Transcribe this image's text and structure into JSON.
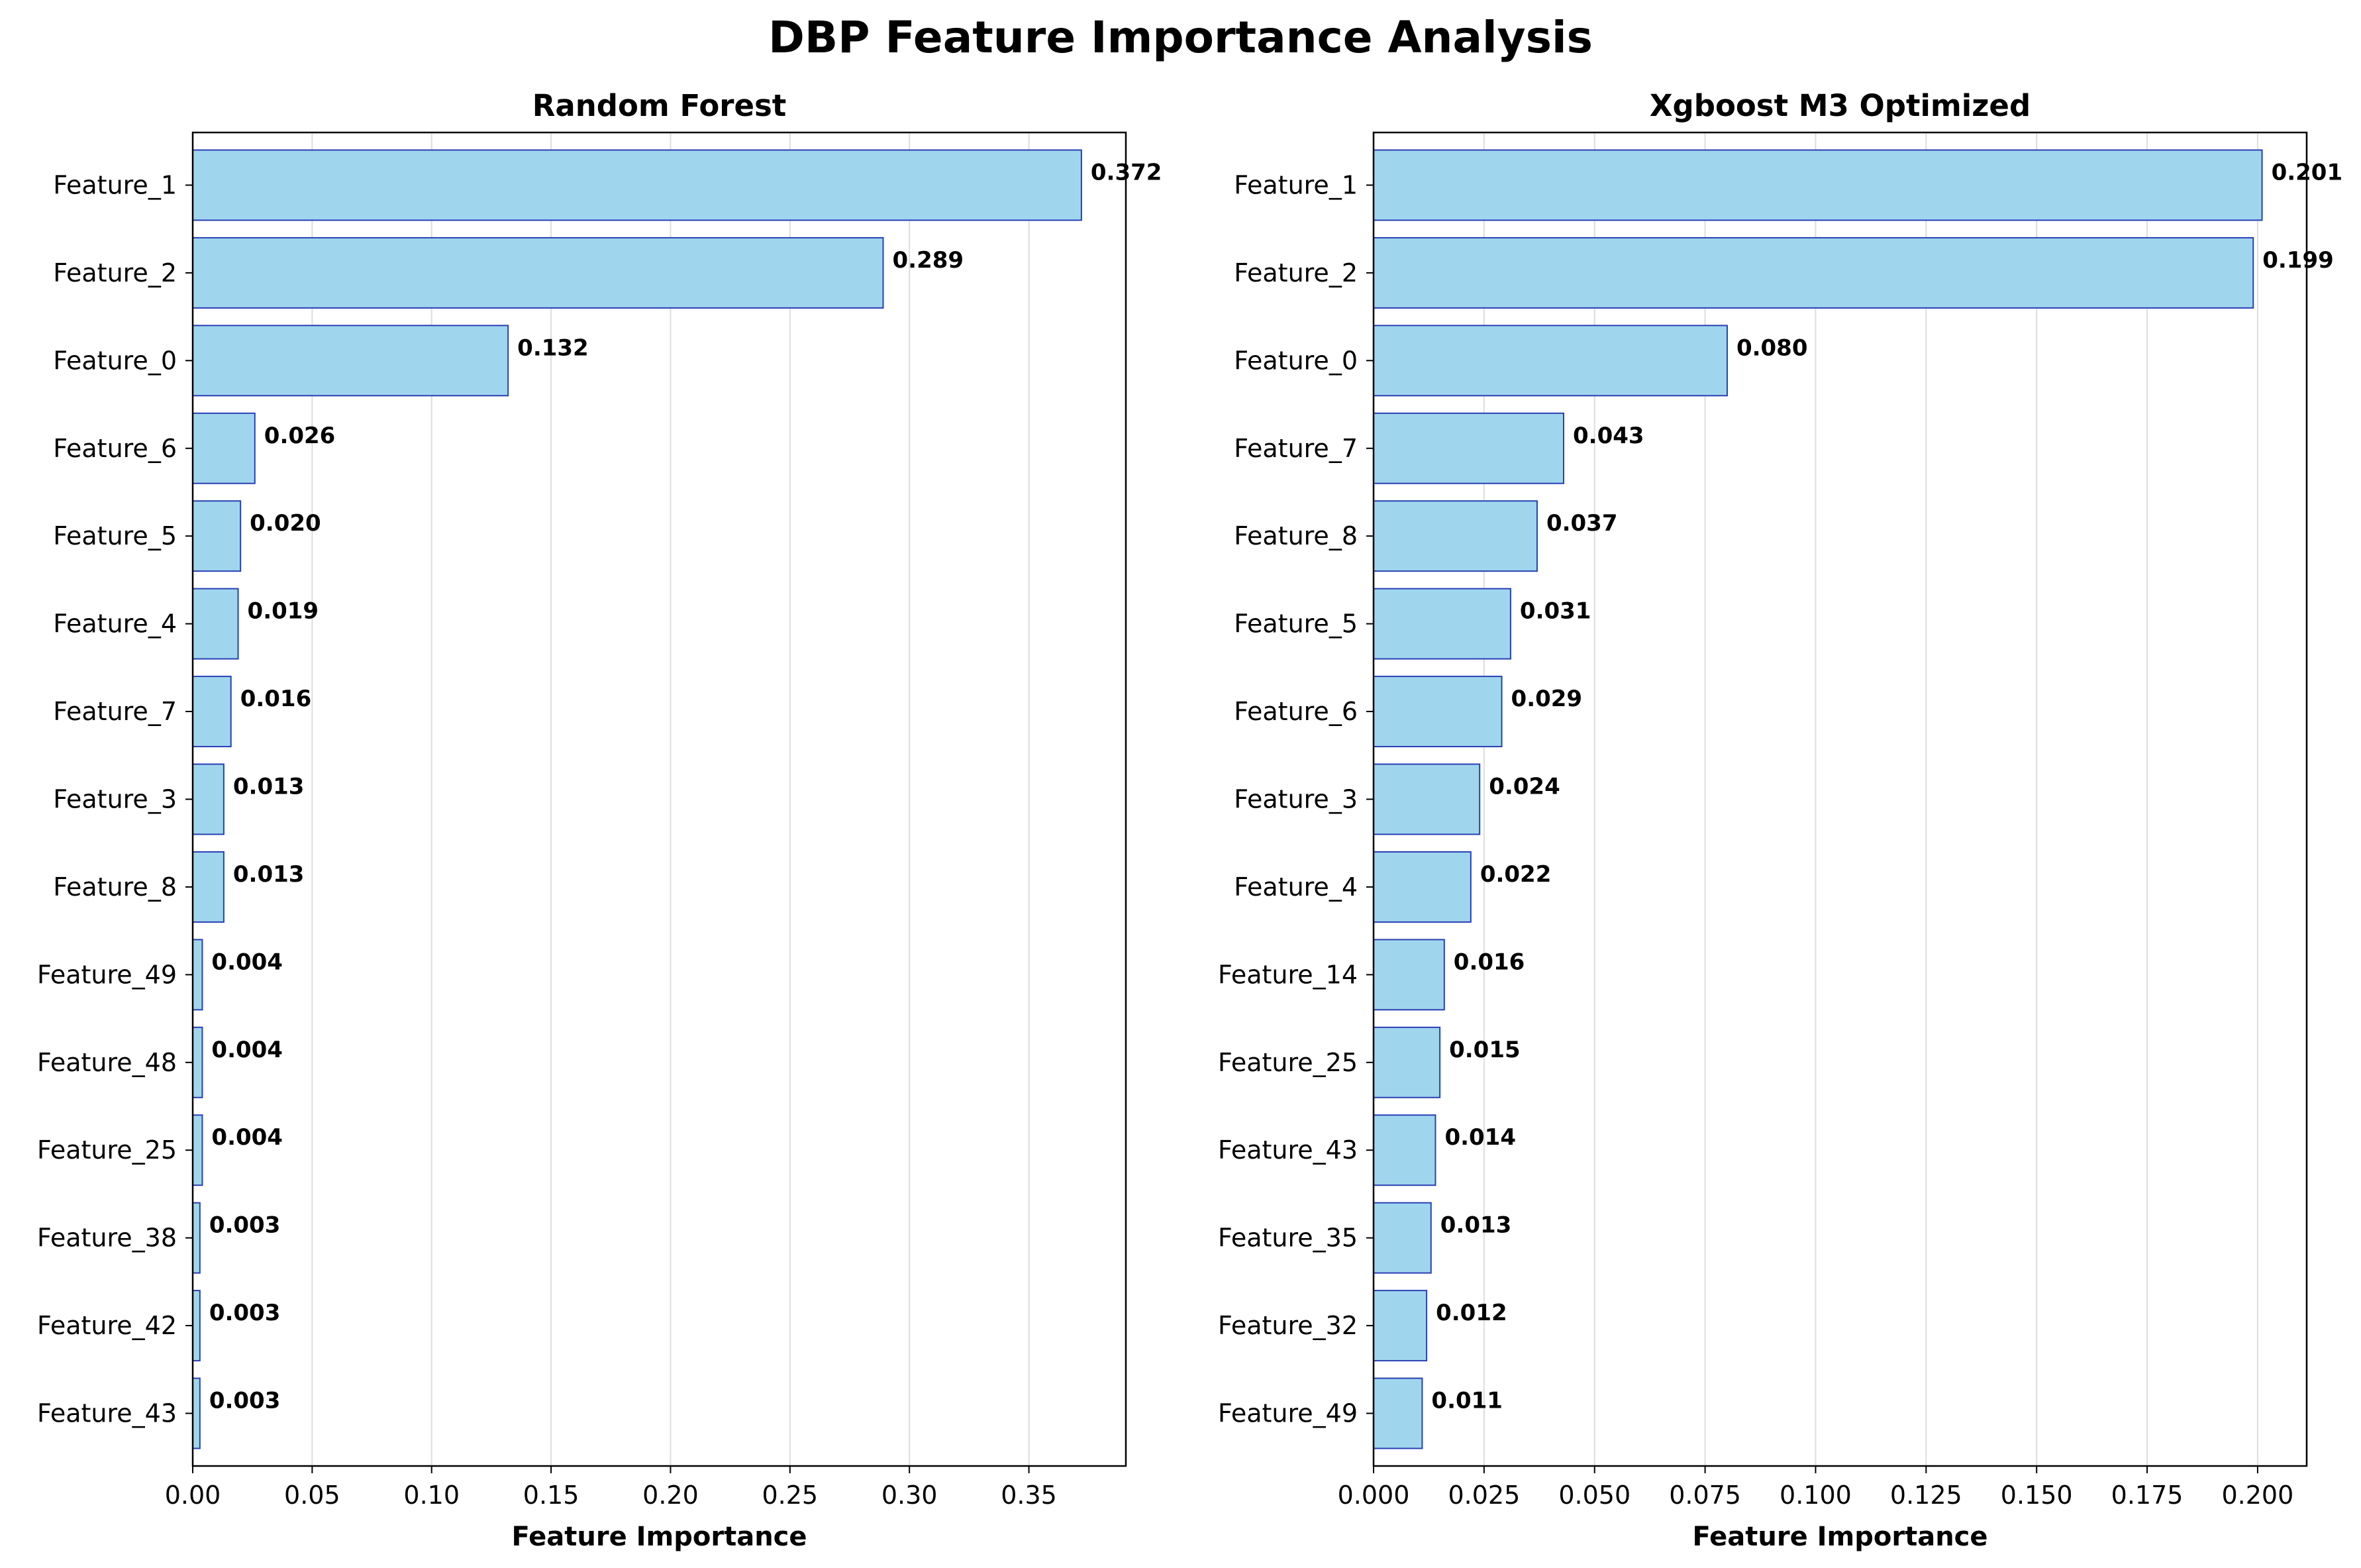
{
  "title": "DBP Feature Importance Analysis",
  "colors": {
    "bar_fill": "#9fd6ed",
    "bar_edge": "#2a3fb5",
    "grid": "#dddddd",
    "text": "#000000"
  },
  "chart_data": [
    {
      "type": "bar",
      "orientation": "horizontal",
      "title": "Random Forest",
      "xlabel": "Feature Importance",
      "ylabel": "",
      "categories": [
        "Feature_1",
        "Feature_2",
        "Feature_0",
        "Feature_6",
        "Feature_5",
        "Feature_4",
        "Feature_7",
        "Feature_3",
        "Feature_8",
        "Feature_49",
        "Feature_48",
        "Feature_25",
        "Feature_38",
        "Feature_42",
        "Feature_43"
      ],
      "values": [
        0.372,
        0.289,
        0.132,
        0.026,
        0.02,
        0.019,
        0.016,
        0.013,
        0.013,
        0.004,
        0.004,
        0.004,
        0.003,
        0.003,
        0.003
      ],
      "value_labels": [
        "0.372",
        "0.289",
        "0.132",
        "0.026",
        "0.020",
        "0.019",
        "0.016",
        "0.013",
        "0.013",
        "0.004",
        "0.004",
        "0.004",
        "0.003",
        "0.003",
        "0.003"
      ],
      "xlim": [
        0,
        0.3906
      ],
      "xticks": [
        0.0,
        0.05,
        0.1,
        0.15,
        0.2,
        0.25,
        0.3,
        0.35
      ],
      "xtick_labels": [
        "0.00",
        "0.05",
        "0.10",
        "0.15",
        "0.20",
        "0.25",
        "0.30",
        "0.35"
      ],
      "grid": "x"
    },
    {
      "type": "bar",
      "orientation": "horizontal",
      "title": "Xgboost M3 Optimized",
      "xlabel": "Feature Importance",
      "ylabel": "",
      "categories": [
        "Feature_1",
        "Feature_2",
        "Feature_0",
        "Feature_7",
        "Feature_8",
        "Feature_5",
        "Feature_6",
        "Feature_3",
        "Feature_4",
        "Feature_14",
        "Feature_25",
        "Feature_43",
        "Feature_35",
        "Feature_32",
        "Feature_49"
      ],
      "values": [
        0.201,
        0.199,
        0.08,
        0.043,
        0.037,
        0.031,
        0.029,
        0.024,
        0.022,
        0.016,
        0.015,
        0.014,
        0.013,
        0.012,
        0.011
      ],
      "value_labels": [
        "0.201",
        "0.199",
        "0.080",
        "0.043",
        "0.037",
        "0.031",
        "0.029",
        "0.024",
        "0.022",
        "0.016",
        "0.015",
        "0.014",
        "0.013",
        "0.012",
        "0.011"
      ],
      "xlim": [
        0,
        0.2111
      ],
      "xticks": [
        0.0,
        0.025,
        0.05,
        0.075,
        0.1,
        0.125,
        0.15,
        0.175,
        0.2
      ],
      "xtick_labels": [
        "0.000",
        "0.025",
        "0.050",
        "0.075",
        "0.100",
        "0.125",
        "0.150",
        "0.175",
        "0.200"
      ],
      "grid": "x"
    }
  ]
}
